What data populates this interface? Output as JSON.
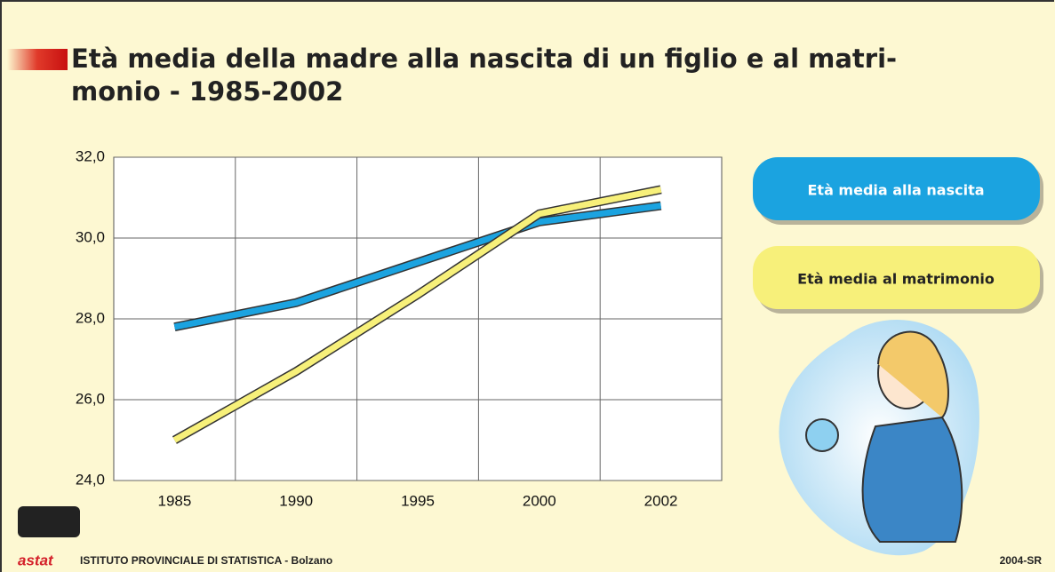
{
  "chart_data": {
    "type": "line",
    "title": [
      "Età media della madre alla nascita di un figlio e al matri-",
      "monio - 1985-2002"
    ],
    "categories": [
      "1985",
      "1990",
      "1995",
      "2000",
      "2002"
    ],
    "series": [
      {
        "name": "Età media alla nascita",
        "color": "#1ba3e0",
        "values": [
          27.8,
          28.4,
          29.4,
          30.4,
          30.8
        ]
      },
      {
        "name": "Età media al matrimonio",
        "color": "#f7f07a",
        "values": [
          25.0,
          26.7,
          28.6,
          30.6,
          31.2
        ]
      }
    ],
    "ylim": [
      24,
      32
    ],
    "yticks": [
      {
        "value": 24,
        "label": "24,0"
      },
      {
        "value": 26,
        "label": "26,0"
      },
      {
        "value": 28,
        "label": "28,0"
      },
      {
        "value": 30,
        "label": "30,0"
      },
      {
        "value": 32,
        "label": "32,0"
      }
    ],
    "grid": true
  },
  "footer": {
    "logo": "astat",
    "institute": "ISTITUTO PROVINCIALE DI STATISTICA - Bolzano",
    "code": "2004-SR"
  }
}
